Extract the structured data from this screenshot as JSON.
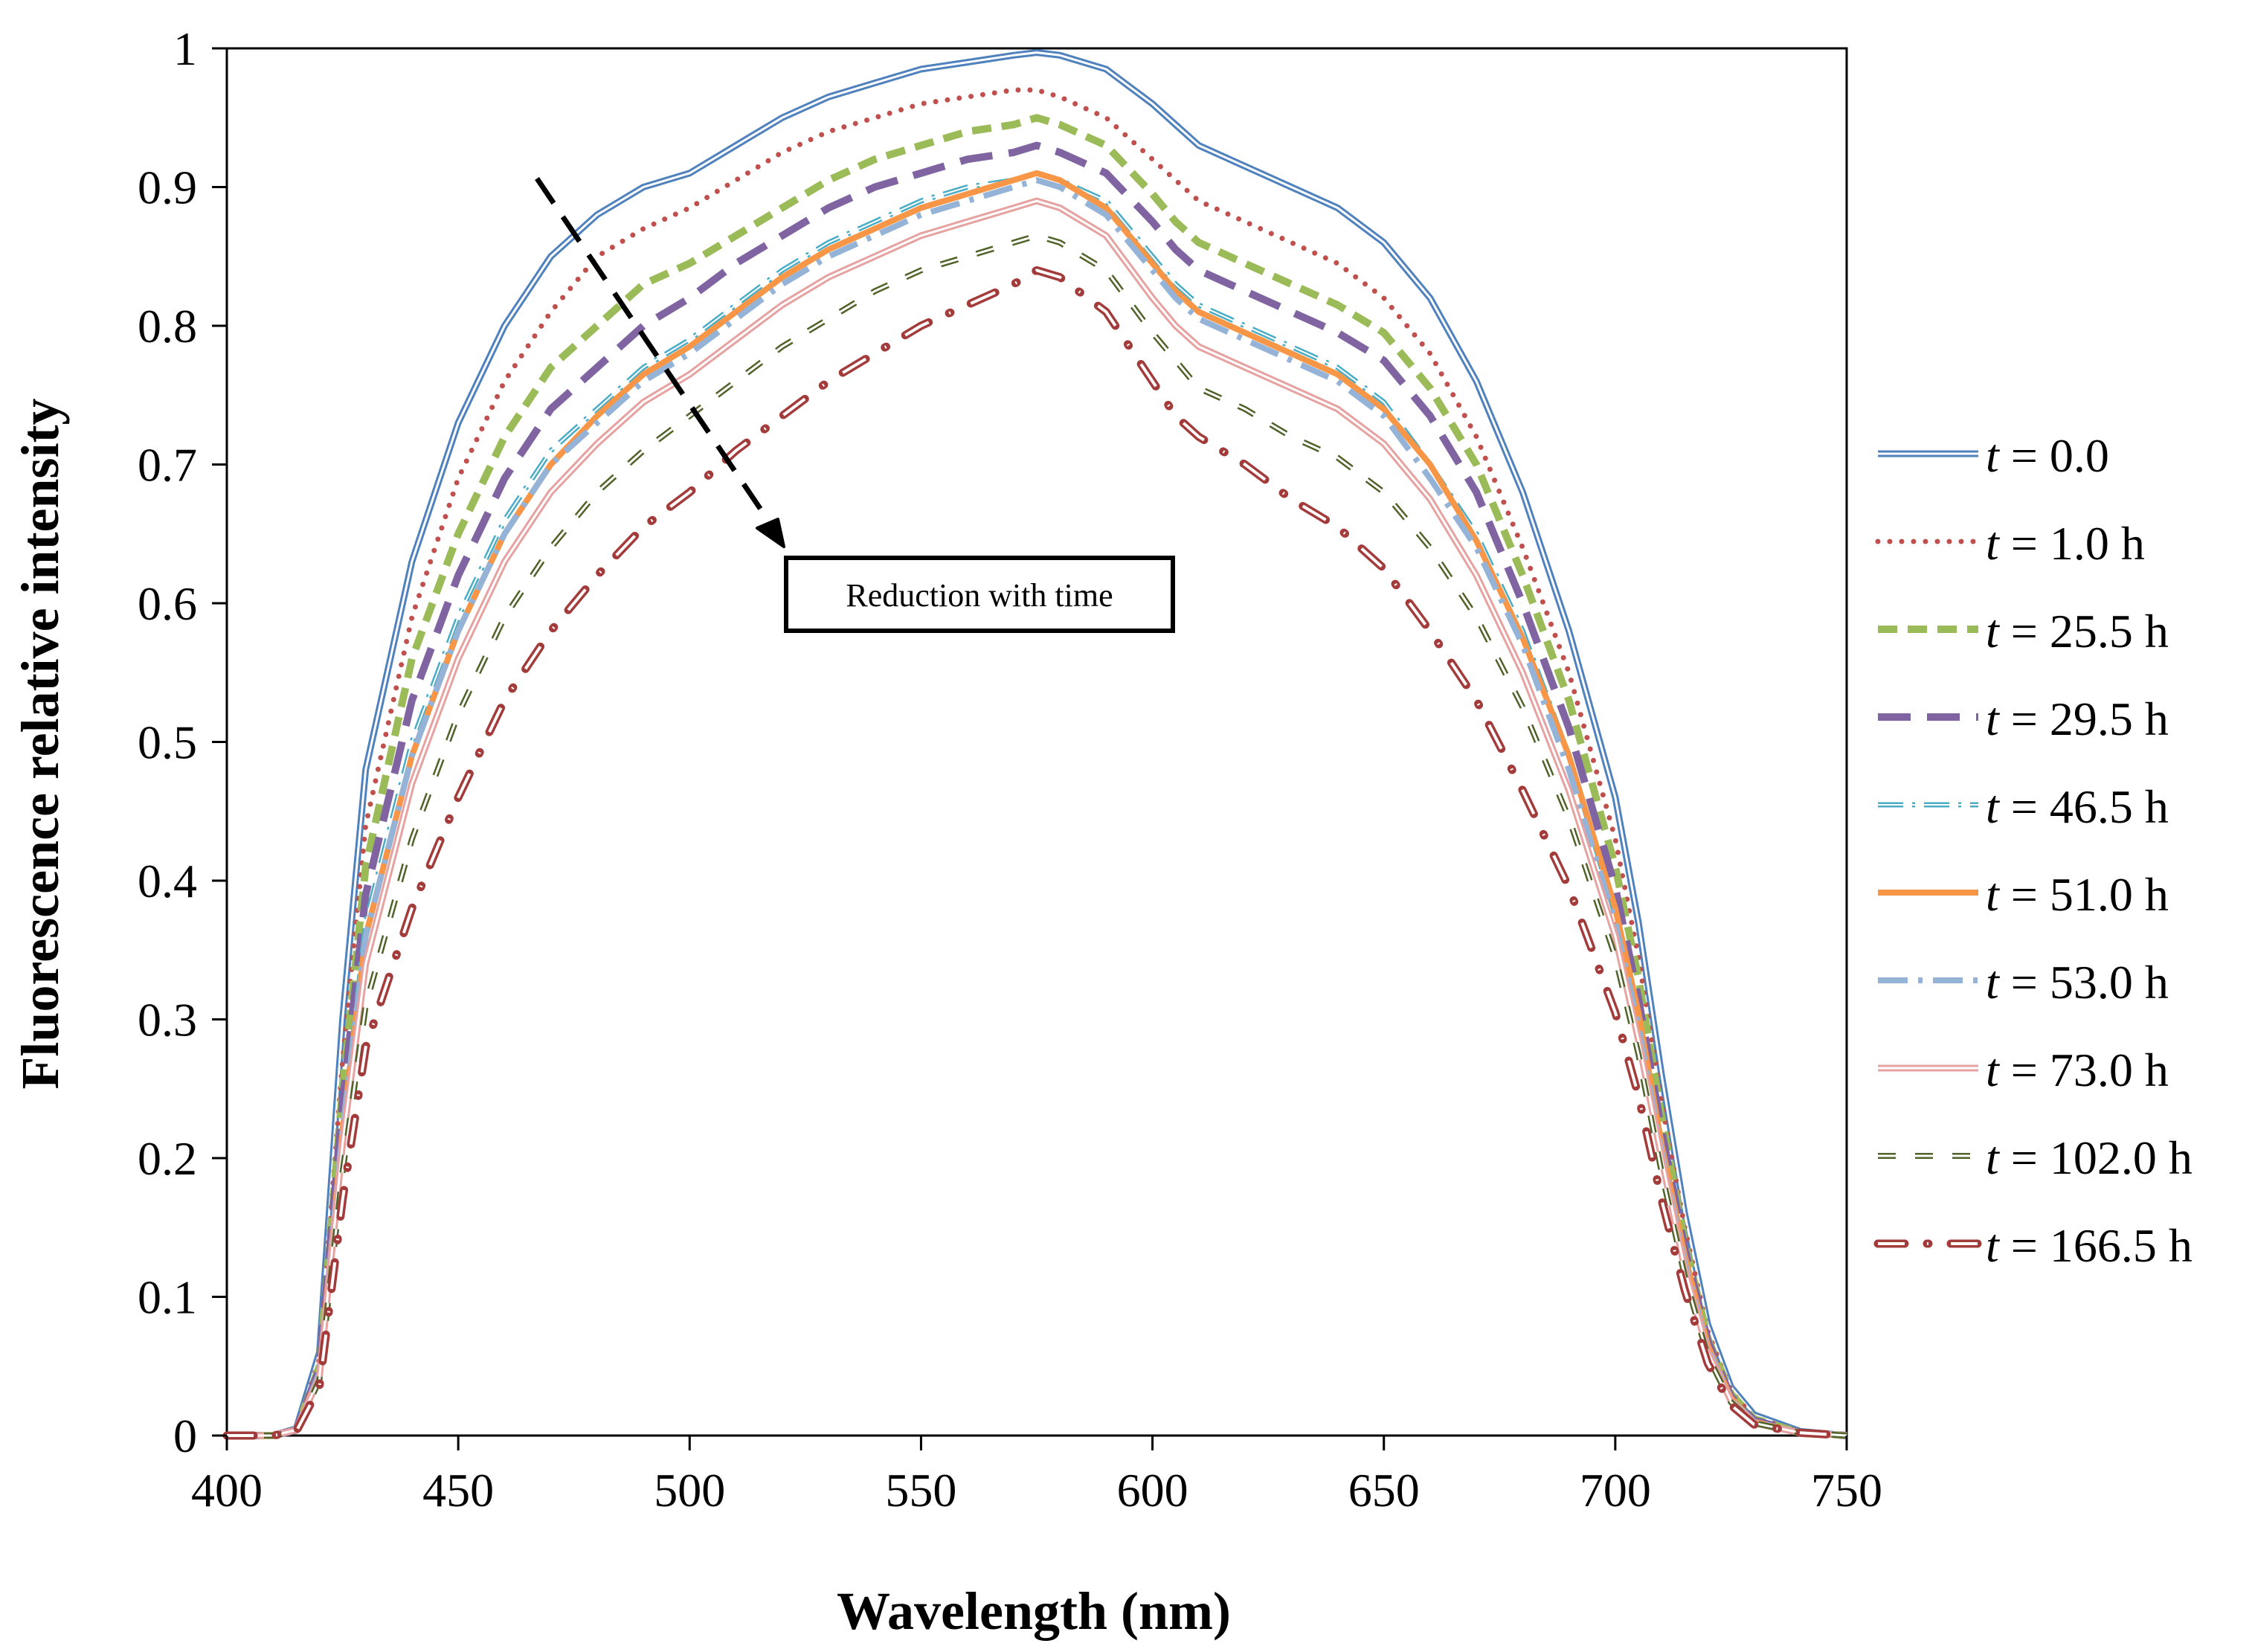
{
  "chart_data": {
    "type": "line",
    "title": "",
    "xlabel": "Wavelength (nm)",
    "ylabel": "Fluorescence relative intensity",
    "xlim": [
      400,
      750
    ],
    "ylim": [
      0,
      1
    ],
    "x_ticks": [
      "400",
      "450",
      "500",
      "550",
      "600",
      "650",
      "700",
      "750"
    ],
    "y_ticks": [
      "0",
      "0.1",
      "0.2",
      "0.3",
      "0.4",
      "0.5",
      "0.6",
      "0.7",
      "0.8",
      "0.9",
      "1"
    ],
    "grid": false,
    "legend_position": "right",
    "annotation": "Reduction with time",
    "x": [
      400,
      410,
      415,
      420,
      425,
      430,
      440,
      450,
      460,
      470,
      480,
      490,
      500,
      510,
      520,
      530,
      540,
      550,
      560,
      570,
      575,
      580,
      590,
      600,
      605,
      610,
      620,
      630,
      640,
      650,
      660,
      670,
      680,
      690,
      700,
      705,
      710,
      715,
      720,
      725,
      730,
      740,
      750
    ],
    "series": [
      {
        "name": "t = 0.0",
        "t_value": "0.0",
        "unit": "",
        "color": "#4f81bd",
        "style": "double",
        "values": [
          0,
          0,
          0.005,
          0.06,
          0.3,
          0.48,
          0.63,
          0.73,
          0.8,
          0.85,
          0.88,
          0.9,
          0.91,
          0.93,
          0.95,
          0.965,
          0.975,
          0.985,
          0.99,
          0.995,
          0.997,
          0.995,
          0.985,
          0.96,
          0.945,
          0.93,
          0.915,
          0.9,
          0.885,
          0.86,
          0.82,
          0.76,
          0.68,
          0.58,
          0.46,
          0.37,
          0.26,
          0.16,
          0.08,
          0.035,
          0.015,
          0.003,
          0
        ]
      },
      {
        "name": "t = 1.0 h",
        "t_value": "1.0 h",
        "unit": "h",
        "color": "#c0504d",
        "style": "dotted",
        "values": [
          0,
          0,
          0.004,
          0.055,
          0.27,
          0.44,
          0.59,
          0.69,
          0.76,
          0.81,
          0.85,
          0.87,
          0.885,
          0.905,
          0.925,
          0.94,
          0.95,
          0.96,
          0.965,
          0.97,
          0.97,
          0.965,
          0.95,
          0.92,
          0.905,
          0.89,
          0.875,
          0.86,
          0.845,
          0.82,
          0.78,
          0.72,
          0.64,
          0.55,
          0.43,
          0.345,
          0.24,
          0.15,
          0.075,
          0.032,
          0.013,
          0.003,
          0
        ]
      },
      {
        "name": "t = 25.5 h",
        "t_value": "25.5 h",
        "unit": "h",
        "color": "#9bbb59",
        "style": "dash",
        "values": [
          0,
          0,
          0.004,
          0.05,
          0.25,
          0.41,
          0.56,
          0.65,
          0.72,
          0.77,
          0.8,
          0.83,
          0.845,
          0.865,
          0.885,
          0.905,
          0.92,
          0.93,
          0.94,
          0.945,
          0.95,
          0.945,
          0.93,
          0.895,
          0.875,
          0.86,
          0.845,
          0.83,
          0.815,
          0.795,
          0.755,
          0.7,
          0.62,
          0.53,
          0.41,
          0.33,
          0.23,
          0.14,
          0.07,
          0.03,
          0.012,
          0.002,
          0
        ]
      },
      {
        "name": "t = 29.5 h",
        "t_value": "29.5 h",
        "unit": "h",
        "color": "#8064a2",
        "style": "longdash",
        "values": [
          0,
          0,
          0.004,
          0.048,
          0.24,
          0.39,
          0.53,
          0.62,
          0.69,
          0.74,
          0.77,
          0.8,
          0.82,
          0.845,
          0.865,
          0.885,
          0.9,
          0.91,
          0.92,
          0.925,
          0.93,
          0.925,
          0.91,
          0.875,
          0.855,
          0.84,
          0.825,
          0.81,
          0.795,
          0.775,
          0.735,
          0.68,
          0.6,
          0.51,
          0.395,
          0.315,
          0.22,
          0.135,
          0.068,
          0.028,
          0.011,
          0.002,
          0
        ]
      },
      {
        "name": "t = 46.5 h",
        "t_value": "46.5 h",
        "unit": "h",
        "color": "#4bacc6",
        "style": "dashdot",
        "values": [
          0,
          0,
          0.004,
          0.045,
          0.22,
          0.37,
          0.5,
          0.59,
          0.66,
          0.71,
          0.74,
          0.77,
          0.79,
          0.815,
          0.84,
          0.86,
          0.875,
          0.89,
          0.9,
          0.905,
          0.91,
          0.905,
          0.89,
          0.85,
          0.83,
          0.815,
          0.8,
          0.785,
          0.77,
          0.745,
          0.7,
          0.65,
          0.58,
          0.49,
          0.375,
          0.3,
          0.21,
          0.13,
          0.065,
          0.027,
          0.01,
          0.002,
          0
        ]
      },
      {
        "name": "t = 51.0 h",
        "t_value": "51.0 h",
        "unit": "h",
        "color": "#f79646",
        "style": "solid",
        "values": [
          0,
          0,
          0.004,
          0.045,
          0.22,
          0.36,
          0.49,
          0.58,
          0.65,
          0.7,
          0.735,
          0.765,
          0.785,
          0.81,
          0.835,
          0.855,
          0.87,
          0.885,
          0.895,
          0.905,
          0.91,
          0.905,
          0.885,
          0.845,
          0.825,
          0.81,
          0.795,
          0.78,
          0.765,
          0.74,
          0.7,
          0.645,
          0.575,
          0.49,
          0.38,
          0.305,
          0.21,
          0.13,
          0.065,
          0.027,
          0.01,
          0.002,
          0
        ]
      },
      {
        "name": "t = 53.0 h",
        "t_value": "53.0 h",
        "unit": "h",
        "color": "#95b3d7",
        "style": "longdashdot",
        "values": [
          0,
          0,
          0.004,
          0.045,
          0.22,
          0.36,
          0.49,
          0.58,
          0.65,
          0.7,
          0.73,
          0.76,
          0.78,
          0.805,
          0.83,
          0.85,
          0.865,
          0.88,
          0.89,
          0.9,
          0.905,
          0.9,
          0.88,
          0.84,
          0.82,
          0.805,
          0.79,
          0.775,
          0.76,
          0.735,
          0.69,
          0.64,
          0.57,
          0.48,
          0.37,
          0.295,
          0.205,
          0.125,
          0.063,
          0.026,
          0.01,
          0.002,
          0
        ]
      },
      {
        "name": "t = 73.0 h",
        "t_value": "73.0 h",
        "unit": "h",
        "color": "#e6a2a0",
        "style": "double",
        "values": [
          0,
          0,
          0.004,
          0.042,
          0.21,
          0.34,
          0.47,
          0.56,
          0.63,
          0.68,
          0.715,
          0.745,
          0.765,
          0.79,
          0.815,
          0.835,
          0.85,
          0.865,
          0.875,
          0.885,
          0.89,
          0.885,
          0.865,
          0.82,
          0.8,
          0.785,
          0.77,
          0.755,
          0.74,
          0.715,
          0.675,
          0.62,
          0.55,
          0.465,
          0.36,
          0.285,
          0.2,
          0.12,
          0.06,
          0.025,
          0.009,
          0.002,
          0
        ]
      },
      {
        "name": "t = 102.0 h",
        "t_value": "102.0 h",
        "unit": "h",
        "color": "#4f6228",
        "style": "hollowdash",
        "values": [
          0,
          0,
          0.003,
          0.04,
          0.19,
          0.31,
          0.43,
          0.52,
          0.59,
          0.64,
          0.68,
          0.71,
          0.735,
          0.76,
          0.785,
          0.805,
          0.825,
          0.84,
          0.85,
          0.86,
          0.865,
          0.86,
          0.84,
          0.795,
          0.775,
          0.755,
          0.74,
          0.72,
          0.705,
          0.68,
          0.64,
          0.59,
          0.525,
          0.445,
          0.345,
          0.275,
          0.19,
          0.115,
          0.057,
          0.024,
          0.009,
          0.002,
          0
        ]
      },
      {
        "name": "t = 166.5 h",
        "t_value": "166.5 h",
        "unit": "h",
        "color": "#a33b3b",
        "style": "hollowdashdot",
        "values": [
          0,
          0,
          0.003,
          0.035,
          0.17,
          0.28,
          0.38,
          0.46,
          0.53,
          0.58,
          0.62,
          0.655,
          0.68,
          0.71,
          0.735,
          0.76,
          0.78,
          0.8,
          0.815,
          0.83,
          0.84,
          0.835,
          0.81,
          0.76,
          0.735,
          0.72,
          0.7,
          0.675,
          0.655,
          0.625,
          0.58,
          0.53,
          0.465,
          0.395,
          0.305,
          0.245,
          0.17,
          0.105,
          0.052,
          0.022,
          0.008,
          0.002,
          0
        ]
      }
    ]
  }
}
